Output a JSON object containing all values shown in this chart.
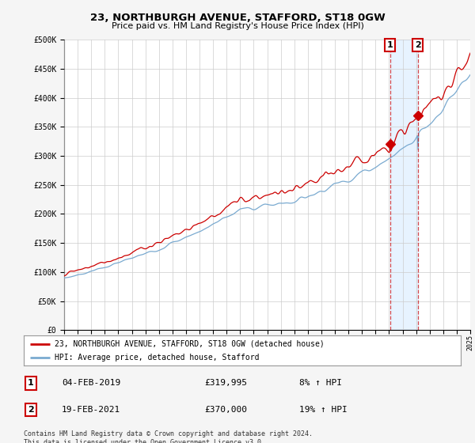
{
  "title": "23, NORTHBURGH AVENUE, STAFFORD, ST18 0GW",
  "subtitle": "Price paid vs. HM Land Registry's House Price Index (HPI)",
  "legend_label_red": "23, NORTHBURGH AVENUE, STAFFORD, ST18 0GW (detached house)",
  "legend_label_blue": "HPI: Average price, detached house, Stafford",
  "footer": "Contains HM Land Registry data © Crown copyright and database right 2024.\nThis data is licensed under the Open Government Licence v3.0.",
  "transaction1_date": "04-FEB-2019",
  "transaction1_price": "£319,995",
  "transaction1_hpi": "8% ↑ HPI",
  "transaction2_date": "19-FEB-2021",
  "transaction2_price": "£370,000",
  "transaction2_hpi": "19% ↑ HPI",
  "transaction1_year": 2019.08,
  "transaction2_year": 2021.12,
  "marker1_price_red": 319995,
  "marker1_price_blue": 296000,
  "marker2_price_red": 370000,
  "marker2_price_blue": 311000,
  "ylim_max": 500000,
  "ylim_min": 0,
  "xlim_min": 1995,
  "xlim_max": 2025,
  "color_red": "#cc0000",
  "color_blue": "#7aaad0",
  "bg_color": "#f5f5f5",
  "plot_bg": "#ffffff",
  "grid_color": "#cccccc",
  "shade_color": "#ddeeff"
}
